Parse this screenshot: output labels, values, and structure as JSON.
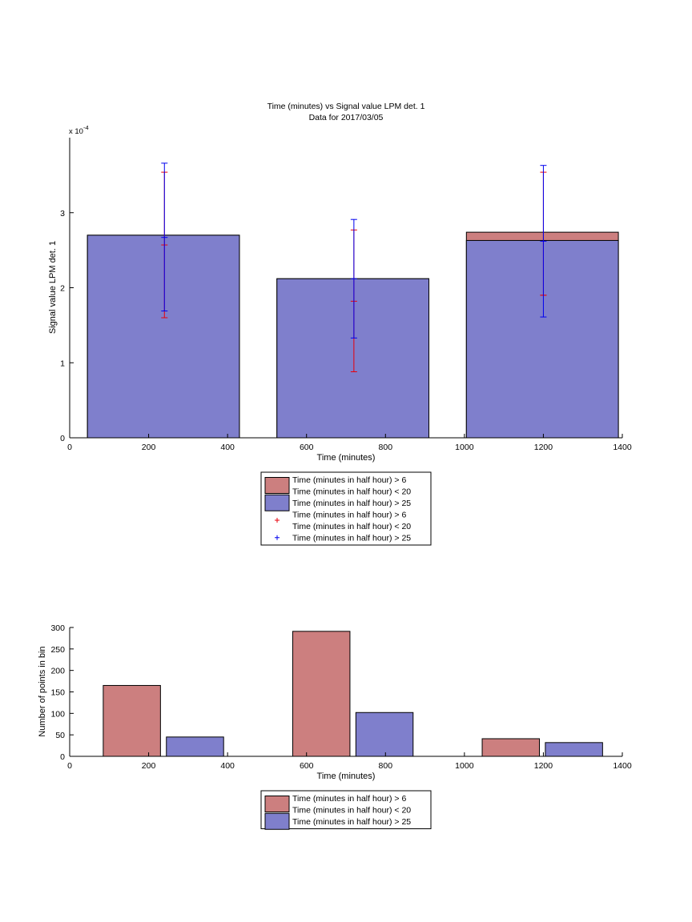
{
  "colors": {
    "red_bar": "#cc7f7f",
    "blue_bar": "#7f7fcc",
    "red_err": "#e8000b",
    "blue_err": "#0000ee"
  },
  "chart_data": [
    {
      "type": "bar",
      "title": "Time (minutes) vs Signal value LPM det. 1",
      "subtitle": "Data for 2017/03/05",
      "xlabel": "Time (minutes)",
      "ylabel": "Signal value LPM det. 1",
      "y_exponent_label": "x 10",
      "y_exponent": "-4",
      "xlim": [
        0,
        1400
      ],
      "ylim": [
        0,
        4
      ],
      "xticks": [
        0,
        200,
        400,
        600,
        800,
        1000,
        1200,
        1400
      ],
      "yticks": [
        0,
        1,
        2,
        3
      ],
      "grid": false,
      "legend_position": "below plot",
      "legend": [
        {
          "kind": "bar",
          "series": "red",
          "lines": [
            "Time (minutes in half hour) > 6",
            "Time (minutes in half hour) < 20"
          ]
        },
        {
          "kind": "bar",
          "series": "blue",
          "lines": [
            "Time (minutes in half hour) > 25"
          ]
        },
        {
          "kind": "marker",
          "series": "red",
          "lines": [
            "Time (minutes in half hour) > 6",
            "Time (minutes in half hour) < 20"
          ]
        },
        {
          "kind": "marker",
          "series": "blue",
          "lines": [
            "Time (minutes in half hour) > 25"
          ]
        }
      ],
      "bars": [
        {
          "x_start": 45,
          "x_end": 430,
          "red": 2.7,
          "blue": 2.7
        },
        {
          "x_start": 525,
          "x_end": 910,
          "red": 2.12,
          "blue": 2.12
        },
        {
          "x_start": 1005,
          "x_end": 1390,
          "red": 2.74,
          "blue": 2.63
        }
      ],
      "errorbars": [
        {
          "series": "red",
          "x": 240,
          "mean": 2.57,
          "low": 1.6,
          "high": 3.54
        },
        {
          "series": "blue",
          "x": 240,
          "mean": 2.67,
          "low": 1.69,
          "high": 3.66
        },
        {
          "series": "red",
          "x": 720,
          "mean": 1.82,
          "low": 0.88,
          "high": 2.77
        },
        {
          "series": "blue",
          "x": 720,
          "mean": 2.12,
          "low": 1.33,
          "high": 2.91
        },
        {
          "series": "red",
          "x": 1200,
          "mean": 1.9,
          "low": 1.9,
          "high": 3.54
        },
        {
          "series": "blue",
          "x": 1200,
          "mean": 2.62,
          "low": 1.61,
          "high": 3.63
        }
      ]
    },
    {
      "type": "bar",
      "title": "",
      "xlabel": "Time (minutes)",
      "ylabel": "Number of points in bin",
      "xlim": [
        0,
        1400
      ],
      "ylim": [
        0,
        300
      ],
      "xticks": [
        0,
        200,
        400,
        600,
        800,
        1000,
        1200,
        1400
      ],
      "yticks": [
        0,
        50,
        100,
        150,
        200,
        250,
        300
      ],
      "grid": false,
      "legend_position": "below plot",
      "legend": [
        {
          "kind": "bar",
          "series": "red",
          "lines": [
            "Time (minutes in half hour) > 6",
            "Time (minutes in half hour) < 20"
          ]
        },
        {
          "kind": "bar",
          "series": "blue",
          "lines": [
            "Time (minutes in half hour) > 25"
          ]
        }
      ],
      "bars": [
        {
          "series": "red",
          "x_start": 85,
          "x_end": 230,
          "value": 165
        },
        {
          "series": "blue",
          "x_start": 245,
          "x_end": 390,
          "value": 45
        },
        {
          "series": "red",
          "x_start": 565,
          "x_end": 710,
          "value": 291
        },
        {
          "series": "blue",
          "x_start": 725,
          "x_end": 870,
          "value": 102
        },
        {
          "series": "red",
          "x_start": 1045,
          "x_end": 1190,
          "value": 41
        },
        {
          "series": "blue",
          "x_start": 1205,
          "x_end": 1350,
          "value": 32
        }
      ]
    }
  ]
}
